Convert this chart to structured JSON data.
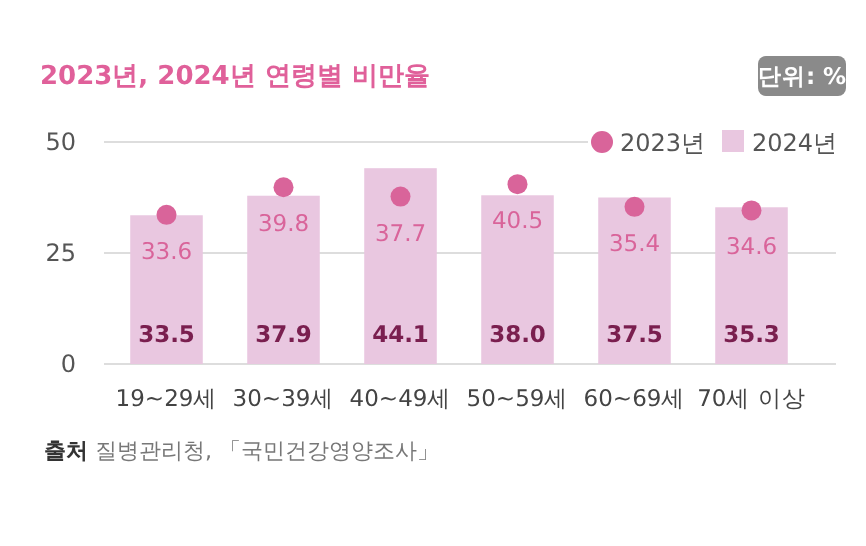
{
  "chart_data": {
    "type": "bar",
    "title": "2023년, 2024년 연령별 비만율",
    "categories": [
      "19~29세",
      "30~39세",
      "40~49세",
      "50~59세",
      "60~69세",
      "70세 이상"
    ],
    "series": [
      {
        "name": "2023년",
        "type": "scatter",
        "color": "#d9649a",
        "values": [
          33.6,
          39.8,
          37.7,
          40.5,
          35.4,
          34.6
        ],
        "value_labels": [
          "33.6",
          "39.8",
          "37.7",
          "40.5",
          "35.4",
          "34.6"
        ]
      },
      {
        "name": "2024년",
        "color": "#e9c7e0",
        "values": [
          33.5,
          37.9,
          44.1,
          38.0,
          37.5,
          35.3
        ],
        "value_labels": [
          "33.5",
          "37.9",
          "44.1",
          "38.0",
          "37.5",
          "35.3"
        ]
      }
    ],
    "ylim": [
      0,
      50
    ],
    "yticks": [
      0,
      25,
      50
    ],
    "grid": "y",
    "legend": "top right",
    "marker": "circle",
    "annotations": [
      "단위: %",
      "**출처** 질병관리청, 「국민건강영양조사」"
    ]
  }
}
